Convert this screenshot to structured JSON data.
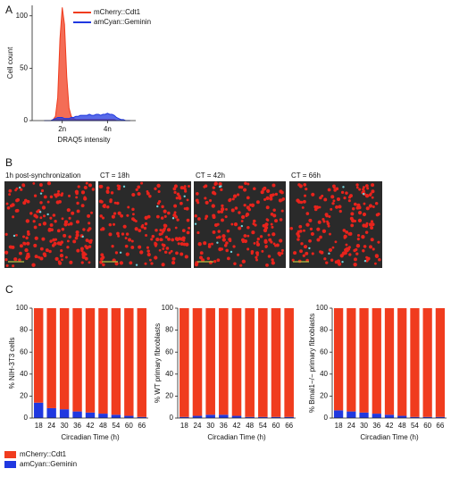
{
  "panel_labels": [
    "A",
    "B",
    "C"
  ],
  "images": {
    "captions": [
      "1h post-synchronization",
      "CT = 18h",
      "CT = 42h",
      "CT = 66h"
    ]
  },
  "chart_data": [
    {
      "type": "area",
      "xlabel": "DRAQ5 intensity",
      "ylabel": "Cell count",
      "legend": "upper right",
      "x": [
        1.2,
        1.3,
        1.4,
        1.5,
        1.6,
        1.7,
        1.8,
        1.9,
        2.0,
        2.1,
        2.2,
        2.3,
        2.4,
        2.5,
        2.6,
        2.7,
        2.8,
        2.9,
        3.0,
        3.1,
        3.2,
        3.3,
        3.4,
        3.5,
        3.6,
        3.7,
        3.8,
        3.9,
        4.0,
        4.1,
        4.2,
        4.3,
        4.4,
        4.5,
        4.6,
        4.7,
        4.8,
        4.9,
        5.0
      ],
      "series": [
        {
          "name": "mCherry::Cdt1",
          "color": "#f03c1e",
          "values": [
            0,
            0,
            0,
            0,
            1,
            4,
            22,
            78,
            108,
            92,
            42,
            12,
            4,
            2,
            1,
            1,
            1,
            1,
            1,
            1,
            1,
            1,
            1,
            1,
            1,
            1,
            1,
            1,
            1,
            1,
            1,
            1,
            0,
            0,
            0,
            0,
            0,
            0,
            0
          ]
        },
        {
          "name": "amCyan::Geminin",
          "color": "#2038e0",
          "values": [
            0,
            0,
            0,
            0,
            1,
            2,
            3,
            3,
            3,
            2,
            2,
            2,
            3,
            3,
            4,
            4,
            5,
            5,
            5,
            5,
            6,
            5,
            5,
            6,
            6,
            5,
            6,
            6,
            7,
            6,
            6,
            5,
            3,
            2,
            1,
            1,
            0,
            0,
            0
          ]
        }
      ],
      "xlim": [
        0.67,
        5.25
      ],
      "ylim": [
        0,
        110
      ],
      "xticks": [
        {
          "value": 2,
          "label": "2n"
        },
        {
          "value": 4,
          "label": "4n"
        }
      ],
      "yticks": [
        0,
        50,
        100
      ]
    },
    {
      "type": "bar",
      "stacked": true,
      "xlabel": "Circadian Time (h)",
      "ylabel": "% NIH-3T3 cells",
      "categories": [
        "18",
        "24",
        "30",
        "36",
        "42",
        "48",
        "54",
        "60",
        "66"
      ],
      "series": [
        {
          "name": "mCherry::Cdt1",
          "color": "#f03c1e",
          "values": [
            86,
            91,
            92,
            94,
            95,
            96,
            97,
            98,
            99
          ]
        },
        {
          "name": "amCyan::Geminin",
          "color": "#2038e0",
          "values": [
            14,
            9,
            8,
            6,
            5,
            4,
            3,
            2,
            1
          ]
        }
      ],
      "ylim": [
        0,
        100
      ],
      "yticks": [
        0,
        20,
        40,
        60,
        80,
        100
      ]
    },
    {
      "type": "bar",
      "stacked": true,
      "xlabel": "Circadian Time (h)",
      "ylabel": "% WT primary fibroblasts",
      "categories": [
        "18",
        "24",
        "30",
        "36",
        "42",
        "48",
        "54",
        "60",
        "66"
      ],
      "series": [
        {
          "color": "#f03c1e",
          "values": [
            99,
            98,
            97,
            97,
            98,
            99,
            99,
            99,
            99
          ]
        },
        {
          "color": "#2038e0",
          "values": [
            1,
            2,
            3,
            3,
            2,
            1,
            1,
            1,
            1
          ]
        }
      ],
      "ylim": [
        0,
        100
      ],
      "yticks": [
        0,
        20,
        40,
        60,
        80,
        100
      ]
    },
    {
      "type": "bar",
      "stacked": true,
      "xlabel": "Circadian Time (h)",
      "ylabel": "% Bmal1−/− primary fibroblasts",
      "categories": [
        "18",
        "24",
        "30",
        "36",
        "42",
        "48",
        "54",
        "60",
        "66"
      ],
      "series": [
        {
          "color": "#f03c1e",
          "values": [
            93,
            94,
            95,
            96,
            97,
            98,
            99,
            99,
            99
          ]
        },
        {
          "color": "#2038e0",
          "values": [
            7,
            6,
            5,
            4,
            3,
            2,
            1,
            1,
            1
          ]
        }
      ],
      "ylim": [
        0,
        100
      ],
      "yticks": [
        0,
        20,
        40,
        60,
        80,
        100
      ]
    }
  ]
}
